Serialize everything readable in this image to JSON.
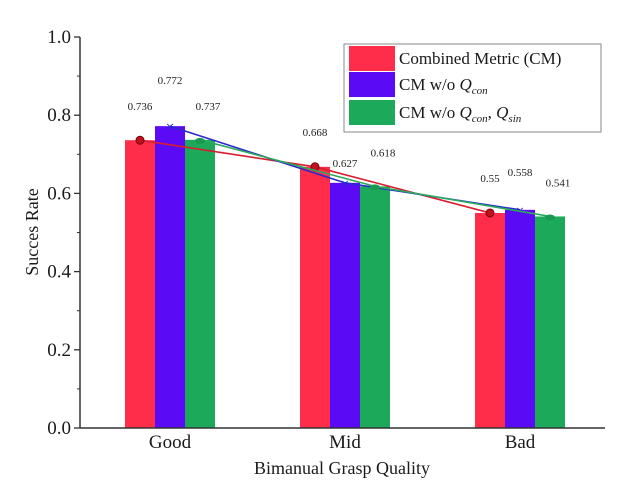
{
  "chart_data": {
    "type": "bar",
    "title": "",
    "xlabel": "Bimanual Grasp Quality",
    "ylabel": "Succes Rate",
    "categories": [
      "Good",
      "Mid",
      "Bad"
    ],
    "ylim": [
      0.0,
      1.0
    ],
    "yticks": [
      "0.0",
      "0.2",
      "0.4",
      "0.6",
      "0.8",
      "1.0"
    ],
    "ytick_values": [
      0.0,
      0.2,
      0.4,
      0.6,
      0.8,
      1.0
    ],
    "minor_yticks": [
      0.1,
      0.3,
      0.5,
      0.7,
      0.9
    ],
    "grid": false,
    "legend_position": "top-right",
    "trend_lines": true,
    "series": [
      {
        "name": "Combined Metric (CM)",
        "legend_parts": [
          {
            "text": "Combined Metric (CM)",
            "style": "normal"
          }
        ],
        "color": "#FF2D4A",
        "line_color": "#D81E2E",
        "values": [
          0.736,
          0.668,
          0.55
        ],
        "labels": [
          "0.736",
          "0.668",
          "0.55"
        ]
      },
      {
        "name": "CM w/o Q_con",
        "legend_parts": [
          {
            "text": "CM w/o ",
            "style": "normal"
          },
          {
            "text": "Q",
            "style": "italic"
          },
          {
            "text": "con",
            "style": "sub"
          }
        ],
        "color": "#5A0AF5",
        "line_color": "#2A2ACC",
        "values": [
          0.772,
          0.627,
          0.558
        ],
        "labels": [
          "0.772",
          "0.627",
          "0.558"
        ]
      },
      {
        "name": "CM w/o Q_con, Q_sin",
        "legend_parts": [
          {
            "text": "CM w/o ",
            "style": "normal"
          },
          {
            "text": "Q",
            "style": "italic"
          },
          {
            "text": "con",
            "style": "sub"
          },
          {
            "text": ", ",
            "style": "normal"
          },
          {
            "text": "Q",
            "style": "italic"
          },
          {
            "text": "sin",
            "style": "sub"
          }
        ],
        "color": "#1CAA5A",
        "line_color": "#2BAA5E",
        "values": [
          0.737,
          0.618,
          0.541
        ],
        "labels": [
          "0.737",
          "0.618",
          "0.541"
        ]
      }
    ]
  }
}
